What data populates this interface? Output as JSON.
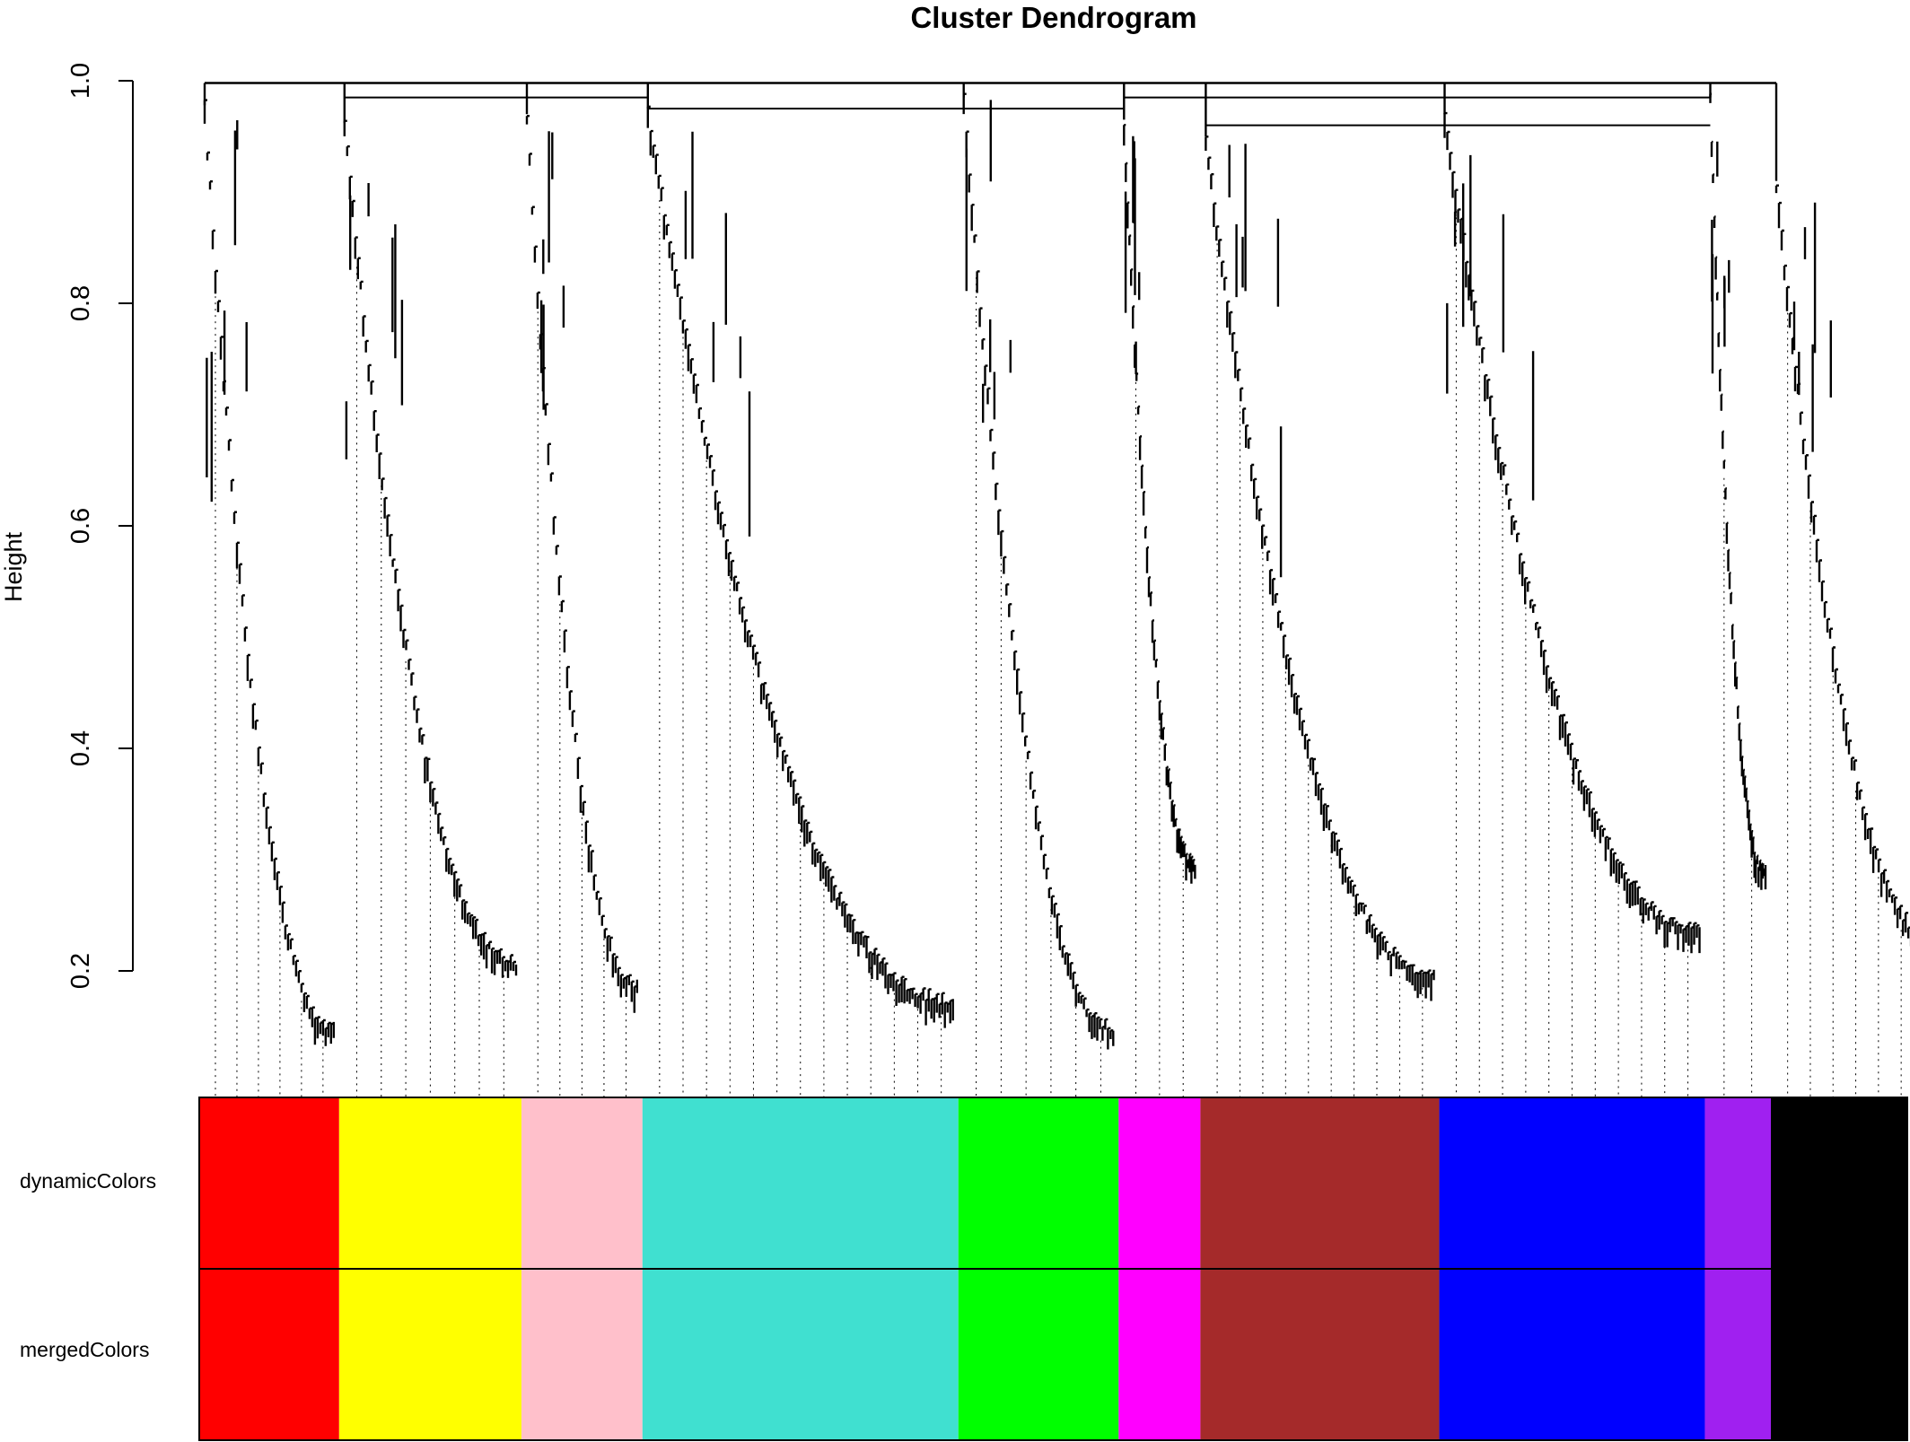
{
  "chart_data": {
    "type": "dendrogram",
    "title": "Cluster Dendrogram",
    "ylabel": "Height",
    "ylim": [
      0.09,
      1.0
    ],
    "y_ticks": [
      0.2,
      0.4,
      0.6,
      0.8,
      1.0
    ],
    "y_tick_labels": [
      "0.2",
      "0.4",
      "0.6",
      "0.8",
      "1.0"
    ],
    "grid": false,
    "color_rows": [
      "dynamicColors",
      "mergedColors"
    ],
    "modules": [
      {
        "color": "red",
        "hex": "#ff0000",
        "start": 0.0,
        "end": 0.089,
        "top": 0.978,
        "floor": 0.15
      },
      {
        "color": "yellow",
        "hex": "#ffff00",
        "start": 0.089,
        "end": 0.205,
        "top": 0.962,
        "floor": 0.21
      },
      {
        "color": "pink",
        "hex": "#ffc0cb",
        "start": 0.205,
        "end": 0.282,
        "top": 0.97,
        "floor": 0.19
      },
      {
        "color": "turquoise",
        "hex": "#40e0d0",
        "start": 0.282,
        "end": 0.483,
        "top": 0.975,
        "floor": 0.175
      },
      {
        "color": "green",
        "hex": "#00ff00",
        "start": 0.483,
        "end": 0.585,
        "top": 0.985,
        "floor": 0.15
      },
      {
        "color": "magenta",
        "hex": "#ff00ff",
        "start": 0.585,
        "end": 0.637,
        "top": 0.965,
        "floor": 0.3
      },
      {
        "color": "brown",
        "hex": "#a52a2a",
        "start": 0.637,
        "end": 0.789,
        "top": 0.95,
        "floor": 0.2
      },
      {
        "color": "blue",
        "hex": "#0000ff",
        "start": 0.789,
        "end": 0.958,
        "top": 0.97,
        "floor": 0.24
      },
      {
        "color": "purple",
        "hex": "#a020f0",
        "start": 0.958,
        "end": 1.0,
        "top": 0.985,
        "floor": 0.29
      },
      {
        "color": "black",
        "hex": "#000000",
        "start": 1.0,
        "end": 1.108,
        "top": 0.91,
        "floor": 0.23
      }
    ],
    "top_merge_height": 0.998,
    "merged_only_last_module": "black"
  }
}
